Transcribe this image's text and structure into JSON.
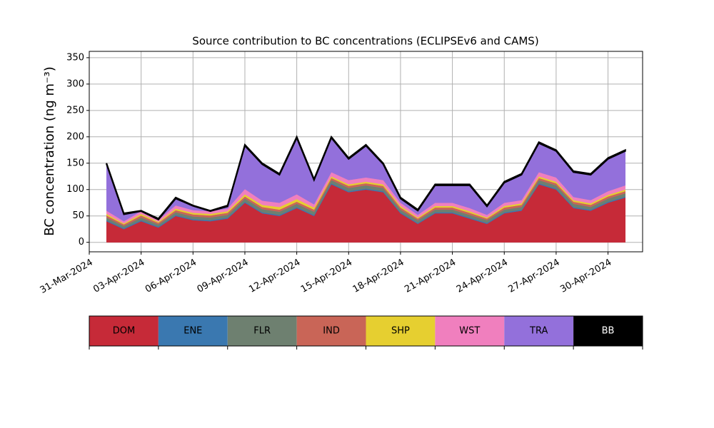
{
  "chart_data": {
    "type": "stacked_area",
    "title": "Source contribution to BC concentrations (ECLIPSEv6 and CAMS)",
    "y_label": "BC concentration (ng m⁻³)",
    "x": [
      "2024-04-01",
      "2024-04-02",
      "2024-04-03",
      "2024-04-04",
      "2024-04-05",
      "2024-04-06",
      "2024-04-07",
      "2024-04-08",
      "2024-04-09",
      "2024-04-10",
      "2024-04-11",
      "2024-04-12",
      "2024-04-13",
      "2024-04-14",
      "2024-04-15",
      "2024-04-16",
      "2024-04-17",
      "2024-04-18",
      "2024-04-19",
      "2024-04-20",
      "2024-04-21",
      "2024-04-22",
      "2024-04-23",
      "2024-04-24",
      "2024-04-25",
      "2024-04-26",
      "2024-04-27",
      "2024-04-28",
      "2024-04-29",
      "2024-04-30",
      "2024-05-01"
    ],
    "series": [
      {
        "name": "DOM",
        "color": "#c62a38",
        "values": [
          40,
          25,
          40,
          28,
          50,
          42,
          40,
          45,
          75,
          55,
          50,
          65,
          50,
          110,
          95,
          100,
          95,
          55,
          35,
          55,
          55,
          45,
          35,
          55,
          60,
          110,
          100,
          65,
          60,
          75,
          85
        ]
      },
      {
        "name": "ENE",
        "color": "#3a78b0",
        "values": [
          2,
          2,
          2,
          2,
          2,
          2,
          2,
          2,
          2,
          2,
          2,
          2,
          2,
          2,
          2,
          2,
          2,
          2,
          2,
          2,
          2,
          2,
          2,
          2,
          2,
          2,
          2,
          2,
          2,
          2,
          2
        ]
      },
      {
        "name": "FLR",
        "color": "#6e8070",
        "values": [
          5,
          4,
          5,
          4,
          5,
          5,
          5,
          5,
          6,
          6,
          6,
          6,
          6,
          6,
          6,
          6,
          6,
          5,
          5,
          5,
          5,
          5,
          5,
          5,
          5,
          6,
          6,
          6,
          5,
          6,
          6
        ]
      },
      {
        "name": "IND",
        "color": "#c96557",
        "values": [
          4,
          3,
          4,
          3,
          4,
          4,
          4,
          4,
          4,
          4,
          4,
          4,
          4,
          4,
          4,
          4,
          4,
          4,
          3,
          4,
          4,
          4,
          3,
          4,
          4,
          4,
          4,
          4,
          4,
          4,
          4
        ]
      },
      {
        "name": "SHP",
        "color": "#e6cf30",
        "values": [
          3,
          2,
          3,
          2,
          3,
          3,
          3,
          3,
          4,
          4,
          5,
          5,
          4,
          3,
          3,
          3,
          3,
          3,
          2,
          3,
          3,
          3,
          2,
          3,
          3,
          3,
          3,
          3,
          3,
          3,
          3
        ]
      },
      {
        "name": "WST",
        "color": "#f07fbe",
        "values": [
          6,
          4,
          5,
          4,
          6,
          5,
          5,
          5,
          10,
          8,
          8,
          9,
          6,
          8,
          8,
          8,
          8,
          6,
          5,
          6,
          6,
          6,
          5,
          6,
          6,
          8,
          8,
          6,
          6,
          7,
          8
        ]
      },
      {
        "name": "TRA",
        "color": "#9370db",
        "values": [
          88,
          13,
          0,
          0,
          13,
          8,
          0,
          4,
          82,
          69,
          53,
          107,
          46,
          65,
          40,
          60,
          30,
          8,
          8,
          33,
          33,
          43,
          16,
          38,
          48,
          55,
          50,
          47,
          48,
          61,
          65
        ]
      },
      {
        "name": "BB",
        "color": "#000000",
        "values": [
          2,
          2,
          1,
          2,
          2,
          1,
          1,
          2,
          2,
          2,
          2,
          2,
          2,
          2,
          2,
          2,
          2,
          2,
          2,
          2,
          2,
          2,
          2,
          2,
          2,
          2,
          2,
          2,
          2,
          2,
          2
        ]
      }
    ],
    "xlim": [
      "2024-03-31",
      "2024-05-02"
    ],
    "xticks": [
      {
        "value": "2024-03-31",
        "label": "31-Mar-2024"
      },
      {
        "value": "2024-04-03",
        "label": "03-Apr-2024"
      },
      {
        "value": "2024-04-06",
        "label": "06-Apr-2024"
      },
      {
        "value": "2024-04-09",
        "label": "09-Apr-2024"
      },
      {
        "value": "2024-04-12",
        "label": "12-Apr-2024"
      },
      {
        "value": "2024-04-15",
        "label": "15-Apr-2024"
      },
      {
        "value": "2024-04-18",
        "label": "18-Apr-2024"
      },
      {
        "value": "2024-04-21",
        "label": "21-Apr-2024"
      },
      {
        "value": "2024-04-24",
        "label": "24-Apr-2024"
      },
      {
        "value": "2024-04-27",
        "label": "27-Apr-2024"
      },
      {
        "value": "2024-04-30",
        "label": "30-Apr-2024"
      }
    ],
    "ylim": [
      -18,
      362
    ],
    "yticks": [
      0,
      50,
      100,
      150,
      200,
      250,
      300,
      350
    ],
    "grid": true
  }
}
